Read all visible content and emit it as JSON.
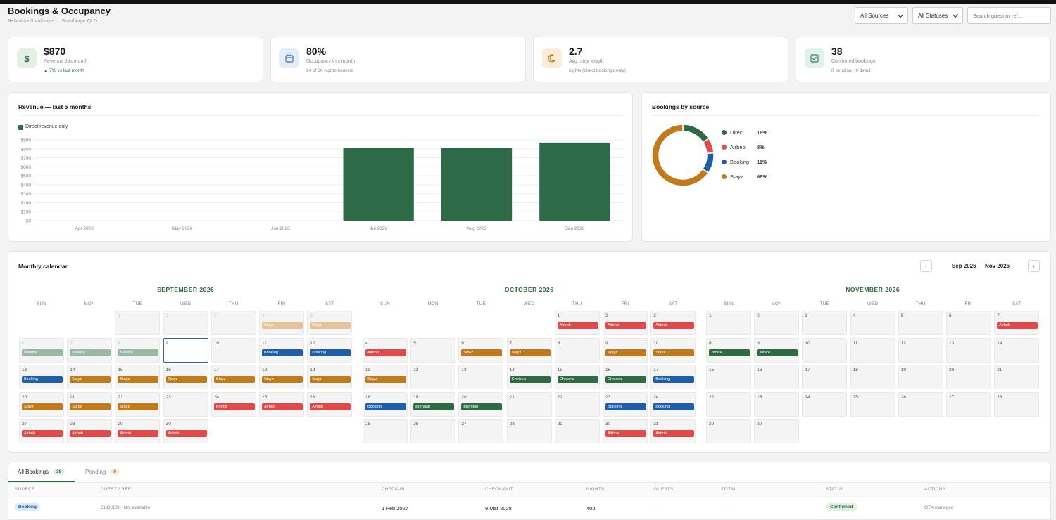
{
  "header": {
    "title": "Bookings & Occupancy",
    "property": "Bellavista Stanthorpe",
    "location": "Stanthorpe QLD",
    "filter_sources": "All Sources",
    "filter_statuses": "All Statuses",
    "search_placeholder": "Search guest or ref..."
  },
  "stats": [
    {
      "value": "$870",
      "label": "Revenue this month",
      "sub": "▲ 7% vs last month",
      "icon": "dollar-icon"
    },
    {
      "value": "80%",
      "label": "Occupancy this month",
      "sub": "24 of 30 nights booked",
      "icon": "calendar-icon"
    },
    {
      "value": "2.7",
      "label": "Avg. stay length",
      "sub": "nights (direct bookings only)",
      "icon": "moon-icon"
    },
    {
      "value": "38",
      "label": "Confirmed bookings",
      "sub": "0 pending · 6 direct",
      "icon": "check-square-icon"
    }
  ],
  "revenue_chart_title": "Revenue — last 6 months",
  "donut_title": "Bookings by source",
  "calendar": {
    "title": "Monthly calendar",
    "range": "Sep 2026 — Nov 2026",
    "dow": [
      "SUN",
      "MON",
      "TUE",
      "WED",
      "THU",
      "FRI",
      "SAT"
    ],
    "months": [
      {
        "name": "SEPTEMBER 2026",
        "weeks": [
          [
            {
              "d": "1",
              "m": true
            },
            {
              "d": "2",
              "m": true
            },
            {
              "d": "3",
              "m": true
            },
            {
              "d": "4",
              "m": true,
              "b": "Stayz",
              "c": "stayz-light"
            },
            {
              "d": "5",
              "m": true,
              "b": "Stayz",
              "c": "stayz-light"
            }
          ],
          [
            {
              "d": "6",
              "m": true,
              "b": "Naomie",
              "c": "sage"
            },
            {
              "d": "7",
              "m": true,
              "b": "Naomie",
              "c": "sage"
            },
            {
              "d": "8",
              "m": true,
              "b": "Naomie",
              "c": "sage"
            },
            {
              "d": "9",
              "t": true
            },
            {
              "d": "10"
            },
            {
              "d": "11",
              "b": "Booking",
              "c": "booking"
            },
            {
              "d": "12",
              "b": "Booking",
              "c": "booking"
            }
          ],
          [
            {
              "d": "13",
              "b": "Booking",
              "c": "booking"
            },
            {
              "d": "14",
              "b": "Stayz",
              "c": "stayz"
            },
            {
              "d": "15",
              "b": "Stayz",
              "c": "stayz"
            },
            {
              "d": "16",
              "b": "Stayz",
              "c": "stayz"
            },
            {
              "d": "17",
              "b": "Stayz",
              "c": "stayz"
            },
            {
              "d": "18",
              "b": "Stayz",
              "c": "stayz"
            },
            {
              "d": "19",
              "b": "Stayz",
              "c": "stayz"
            }
          ],
          [
            {
              "d": "20",
              "b": "Stayz",
              "c": "stayz"
            },
            {
              "d": "21",
              "b": "Stayz",
              "c": "stayz"
            },
            {
              "d": "22",
              "b": "Stayz",
              "c": "stayz"
            },
            {
              "d": "23"
            },
            {
              "d": "24",
              "b": "Airbnb",
              "c": "airbnb"
            },
            {
              "d": "25",
              "b": "Airbnb",
              "c": "airbnb"
            },
            {
              "d": "26",
              "b": "Airbnb",
              "c": "airbnb"
            }
          ],
          [
            {
              "d": "27",
              "b": "Airbnb",
              "c": "airbnb"
            },
            {
              "d": "28",
              "b": "Airbnb",
              "c": "airbnb"
            },
            {
              "d": "29",
              "b": "Airbnb",
              "c": "airbnb"
            },
            {
              "d": "30",
              "b": "Airbnb",
              "c": "airbnb"
            }
          ]
        ],
        "first_col": 2
      },
      {
        "name": "OCTOBER 2026",
        "weeks": [
          [
            {
              "d": "1",
              "b": "Airbnb",
              "c": "airbnb"
            },
            {
              "d": "2",
              "b": "Airbnb",
              "c": "airbnb"
            },
            {
              "d": "3",
              "b": "Airbnb",
              "c": "airbnb"
            }
          ],
          [
            {
              "d": "4",
              "b": "Airbnb",
              "c": "airbnb"
            },
            {
              "d": "5"
            },
            {
              "d": "6",
              "b": "Stayz",
              "c": "stayz"
            },
            {
              "d": "7",
              "b": "Stayz",
              "c": "stayz"
            },
            {
              "d": "8"
            },
            {
              "d": "9",
              "b": "Stayz",
              "c": "stayz"
            },
            {
              "d": "10",
              "b": "Stayz",
              "c": "stayz"
            }
          ],
          [
            {
              "d": "11",
              "b": "Stayz",
              "c": "stayz"
            },
            {
              "d": "12"
            },
            {
              "d": "13"
            },
            {
              "d": "14",
              "b": "Chelsea",
              "c": "direct"
            },
            {
              "d": "15",
              "b": "Chelsea",
              "c": "direct"
            },
            {
              "d": "16",
              "b": "Chelsea",
              "c": "direct"
            },
            {
              "d": "17",
              "b": "Booking",
              "c": "booking"
            }
          ],
          [
            {
              "d": "18",
              "b": "Booking",
              "c": "booking"
            },
            {
              "d": "19",
              "b": "Brendan",
              "c": "direct"
            },
            {
              "d": "20",
              "b": "Brendan",
              "c": "direct"
            },
            {
              "d": "21"
            },
            {
              "d": "22"
            },
            {
              "d": "23",
              "b": "Booking",
              "c": "booking"
            },
            {
              "d": "24",
              "b": "Booking",
              "c": "booking"
            }
          ],
          [
            {
              "d": "25"
            },
            {
              "d": "26"
            },
            {
              "d": "27"
            },
            {
              "d": "28"
            },
            {
              "d": "29"
            },
            {
              "d": "30",
              "b": "Airbnb",
              "c": "airbnb"
            },
            {
              "d": "31",
              "b": "Airbnb",
              "c": "airbnb"
            }
          ]
        ],
        "first_col": 4
      },
      {
        "name": "NOVEMBER 2026",
        "weeks": [
          [
            {
              "d": "1"
            },
            {
              "d": "2"
            },
            {
              "d": "3"
            },
            {
              "d": "4"
            },
            {
              "d": "5"
            },
            {
              "d": "6"
            },
            {
              "d": "7",
              "b": "Airbnb",
              "c": "airbnb"
            }
          ],
          [
            {
              "d": "8",
              "b": "Janice",
              "c": "direct"
            },
            {
              "d": "9",
              "b": "Janice",
              "c": "direct"
            },
            {
              "d": "10"
            },
            {
              "d": "11"
            },
            {
              "d": "12"
            },
            {
              "d": "13"
            },
            {
              "d": "14"
            }
          ],
          [
            {
              "d": "15"
            },
            {
              "d": "16"
            },
            {
              "d": "17"
            },
            {
              "d": "18"
            },
            {
              "d": "19"
            },
            {
              "d": "20"
            },
            {
              "d": "21"
            }
          ],
          [
            {
              "d": "22"
            },
            {
              "d": "23"
            },
            {
              "d": "24"
            },
            {
              "d": "25"
            },
            {
              "d": "26"
            },
            {
              "d": "27"
            },
            {
              "d": "28"
            }
          ],
          [
            {
              "d": "29"
            },
            {
              "d": "30"
            }
          ]
        ],
        "first_col": 0
      }
    ]
  },
  "colors": {
    "airbnb": "#df4b4b",
    "booking": "#1f5ea8",
    "stayz": "#c17a1b",
    "stayz-light": "#e3c49a",
    "direct": "#2e6b45",
    "sage": "#9ab8a3",
    "accent": "#2e6b3e"
  },
  "tabs": {
    "all_label": "All Bookings",
    "all_count": "38",
    "pending_label": "Pending",
    "pending_count": "0"
  },
  "table": {
    "headers": [
      "SOURCE",
      "GUEST / REF",
      "CHECK-IN",
      "CHECK-OUT",
      "NIGHTS",
      "GUESTS",
      "TOTAL",
      "STATUS",
      "ACTIONS"
    ],
    "rows": [
      {
        "source": "Booking",
        "guest": "CLOSED - Not available",
        "checkin": "1 Feb 2027",
        "checkout": "9 Mar 2028",
        "nights": "402",
        "guests": "—",
        "total": "—",
        "status": "Confirmed",
        "actions": "OTA managed"
      }
    ]
  },
  "chart_data": [
    {
      "type": "bar",
      "title": "Revenue — last 6 months",
      "legend": [
        "Direct revenue only"
      ],
      "categories": [
        "Apr 2026",
        "May 2026",
        "Jun 2026",
        "Jul 2026",
        "Aug 2026",
        "Sep 2026"
      ],
      "values": [
        0,
        0,
        0,
        810,
        810,
        870
      ],
      "yticks": [
        "$900",
        "$800",
        "$700",
        "$600",
        "$500",
        "$400",
        "$300",
        "$200",
        "$100",
        "$0"
      ],
      "ylim": [
        0,
        900
      ],
      "color": "#2d6b47",
      "grid": true
    },
    {
      "type": "pie",
      "title": "Bookings by source",
      "labels": [
        "Direct",
        "Airbnb",
        "Booking",
        "Stayz"
      ],
      "values": [
        16,
        8,
        11,
        66
      ],
      "display": [
        "16%",
        "8%",
        "11%",
        "66%"
      ],
      "colors": [
        "#2d6b47",
        "#df4b4b",
        "#1f5ea8",
        "#c17a1b"
      ],
      "legend_position": "right"
    }
  ]
}
